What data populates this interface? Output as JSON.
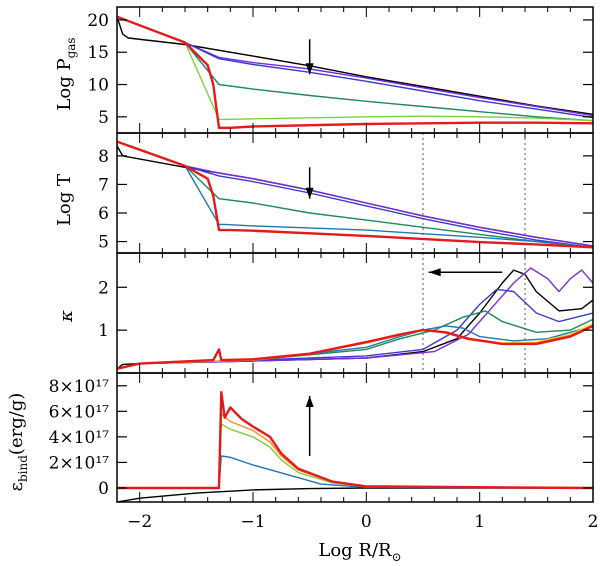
{
  "chart_data": {
    "type": "line",
    "x": {
      "label_main": "Log R/R",
      "label_sub": "⊙",
      "lim": [
        -2.2,
        2.0
      ],
      "major_ticks": [
        -2,
        -1,
        0,
        1,
        2
      ],
      "tick_labels": [
        "−2",
        "−1",
        "0",
        "1",
        "2"
      ]
    },
    "color_sequence": [
      "#000000",
      "#7a2be0",
      "#3a3acf",
      "#1f8a5a",
      "#1f78b4",
      "#7fcf3a",
      "#e8e030",
      "#ff8c1a",
      "#e41a1c"
    ],
    "markers": {
      "vertical_dotted_lines": [
        0.5,
        1.4
      ],
      "panel_span": [
        1,
        2
      ]
    },
    "panels": [
      {
        "id": "pgas",
        "ylabel_main": "Log P",
        "ylabel_sub": "gas",
        "ylim": [
          2.5,
          22.0
        ],
        "ticks": [
          5,
          10,
          15,
          20
        ],
        "tick_labels": [
          "5",
          "10",
          "15",
          "20"
        ],
        "arrow": {
          "direction": "down",
          "x": -0.5,
          "y_from": 17.0,
          "y_to": 11.6
        },
        "series": [
          {
            "name": "black",
            "color": "#000000",
            "x": [
              -2.2,
              -2.15,
              -2.1,
              -1.6,
              -1.0,
              -0.5,
              0.0,
              0.5,
              1.0,
              1.5,
              2.0
            ],
            "y": [
              20.5,
              17.8,
              17.2,
              16.2,
              14.4,
              12.9,
              11.2,
              9.7,
              8.2,
              6.7,
              5.4
            ]
          },
          {
            "name": "violet",
            "color": "#7a2be0",
            "x": [
              -2.2,
              -1.6,
              -1.3,
              -1.0,
              -0.5,
              0.0,
              0.5,
              1.0,
              1.5,
              2.0
            ],
            "y": [
              20.5,
              16.5,
              14.2,
              13.4,
              12.4,
              11.0,
              9.5,
              8.0,
              6.6,
              5.2
            ]
          },
          {
            "name": "blue",
            "color": "#3a3acf",
            "x": [
              -2.2,
              -1.6,
              -1.3,
              -1.0,
              -0.5,
              0.0,
              0.5,
              1.0,
              1.5,
              2.0
            ],
            "y": [
              20.5,
              16.5,
              14.0,
              13.1,
              11.9,
              10.5,
              9.0,
              7.5,
              6.2,
              4.9
            ]
          },
          {
            "name": "green",
            "color": "#1f8a5a",
            "x": [
              -2.2,
              -1.6,
              -1.3,
              -1.0,
              -0.5,
              0.0,
              0.5,
              1.0,
              1.5,
              2.0
            ],
            "y": [
              20.5,
              16.5,
              10.0,
              9.3,
              8.3,
              7.4,
              6.6,
              5.8,
              5.0,
              4.4
            ]
          },
          {
            "name": "lime",
            "color": "#7fcf3a",
            "x": [
              -2.2,
              -1.6,
              -1.3,
              -1.25,
              -1.0,
              0.0,
              0.5,
              1.0,
              1.5,
              2.0
            ],
            "y": [
              20.5,
              16.5,
              4.6,
              4.6,
              4.7,
              5.0,
              5.1,
              5.0,
              4.8,
              4.4
            ]
          },
          {
            "name": "red",
            "color": "#e41a1c",
            "x": [
              -2.2,
              -1.6,
              -1.4,
              -1.35,
              -1.32,
              -1.3,
              -1.2,
              -1.0,
              0.0,
              1.0,
              1.5,
              2.0
            ],
            "y": [
              20.5,
              16.5,
              13.0,
              10.0,
              6.0,
              3.3,
              3.3,
              3.5,
              3.9,
              4.1,
              4.1,
              4.0
            ]
          }
        ]
      },
      {
        "id": "logt",
        "ylabel_main": "Log T",
        "ylabel_sub": "",
        "ylim": [
          4.6,
          8.8
        ],
        "ticks": [
          5,
          6,
          7,
          8
        ],
        "tick_labels": [
          "5",
          "6",
          "7",
          "8"
        ],
        "arrow": {
          "direction": "down",
          "x": -0.5,
          "y_from": 7.6,
          "y_to": 6.5
        },
        "series": [
          {
            "name": "black",
            "color": "#000000",
            "x": [
              -2.2,
              -2.15,
              -1.6,
              -1.0,
              -0.5,
              0.0,
              0.5,
              1.0,
              1.5,
              2.0
            ],
            "y": [
              8.35,
              8.0,
              7.6,
              7.2,
              6.8,
              6.35,
              5.9,
              5.5,
              5.15,
              4.85
            ]
          },
          {
            "name": "violet",
            "color": "#7a2be0",
            "x": [
              -2.2,
              -1.6,
              -1.3,
              -1.0,
              -0.5,
              0.0,
              0.5,
              1.0,
              1.5,
              2.0
            ],
            "y": [
              8.5,
              7.65,
              7.4,
              7.2,
              6.8,
              6.35,
              5.9,
              5.5,
              5.15,
              4.85
            ]
          },
          {
            "name": "blue",
            "color": "#3a3acf",
            "x": [
              -2.2,
              -1.6,
              -1.3,
              -1.0,
              -0.5,
              0.0,
              0.5,
              1.0,
              1.5,
              2.0
            ],
            "y": [
              8.5,
              7.65,
              7.3,
              7.1,
              6.7,
              6.25,
              5.8,
              5.4,
              5.05,
              4.8
            ]
          },
          {
            "name": "green",
            "color": "#1f8a5a",
            "x": [
              -2.2,
              -1.6,
              -1.3,
              -1.0,
              -0.5,
              0.0,
              0.5,
              1.0,
              1.5,
              2.0
            ],
            "y": [
              8.5,
              7.65,
              6.5,
              6.35,
              6.0,
              5.75,
              5.5,
              5.25,
              5.0,
              4.8
            ]
          },
          {
            "name": "teal",
            "color": "#1f78b4",
            "x": [
              -2.2,
              -1.6,
              -1.3,
              -1.25,
              -1.0,
              0.0,
              1.0,
              1.5,
              2.0
            ],
            "y": [
              8.5,
              7.65,
              5.6,
              5.6,
              5.55,
              5.4,
              5.15,
              5.0,
              4.8
            ]
          },
          {
            "name": "red",
            "color": "#e41a1c",
            "x": [
              -2.2,
              -1.6,
              -1.4,
              -1.35,
              -1.3,
              -1.2,
              -1.0,
              0.0,
              1.0,
              1.5,
              2.0
            ],
            "y": [
              8.5,
              7.65,
              7.2,
              6.6,
              5.4,
              5.4,
              5.38,
              5.2,
              4.98,
              4.9,
              4.8
            ]
          }
        ]
      },
      {
        "id": "kappa",
        "ylabel_main": "κ",
        "ylabel_sub": "",
        "ylim": [
          0.0,
          2.8
        ],
        "ticks": [
          1,
          2
        ],
        "tick_labels": [
          "1",
          "2"
        ],
        "arrow": {
          "direction": "left",
          "y": 2.35,
          "x_from": 1.2,
          "x_to": 0.55
        },
        "series": [
          {
            "name": "black",
            "color": "#000000",
            "x": [
              -2.2,
              -2.15,
              -2.0,
              -1.0,
              0.0,
              0.5,
              0.8,
              1.0,
              1.2,
              1.3,
              1.4,
              1.5,
              1.7,
              1.9,
              2.0
            ],
            "y": [
              0.1,
              0.2,
              0.22,
              0.28,
              0.35,
              0.5,
              0.8,
              1.4,
              2.1,
              2.4,
              2.3,
              1.9,
              1.45,
              1.5,
              1.7
            ]
          },
          {
            "name": "violet",
            "color": "#7a2be0",
            "x": [
              -2.2,
              -2.0,
              -1.0,
              0.0,
              0.6,
              0.9,
              1.1,
              1.3,
              1.45,
              1.6,
              1.7,
              1.8,
              1.9,
              2.0
            ],
            "y": [
              0.1,
              0.22,
              0.28,
              0.35,
              0.5,
              0.9,
              1.5,
              2.1,
              2.45,
              2.2,
              1.9,
              2.2,
              2.4,
              2.1
            ]
          },
          {
            "name": "blue",
            "color": "#3a3acf",
            "x": [
              -2.2,
              -2.0,
              -1.0,
              0.0,
              0.5,
              0.8,
              1.0,
              1.15,
              1.3,
              1.5,
              1.7,
              2.0
            ],
            "y": [
              0.1,
              0.22,
              0.3,
              0.4,
              0.55,
              1.0,
              1.6,
              1.95,
              1.9,
              1.4,
              1.2,
              1.4
            ]
          },
          {
            "name": "green",
            "color": "#1f8a5a",
            "x": [
              -2.2,
              -2.0,
              -1.0,
              0.0,
              0.3,
              0.6,
              0.85,
              1.05,
              1.2,
              1.5,
              1.8,
              2.0
            ],
            "y": [
              0.1,
              0.22,
              0.3,
              0.55,
              0.8,
              1.0,
              1.3,
              1.45,
              1.2,
              0.95,
              1.0,
              1.25
            ]
          },
          {
            "name": "teal",
            "color": "#1f78b4",
            "x": [
              -2.2,
              -2.0,
              -1.0,
              0.0,
              0.3,
              0.5,
              0.7,
              0.85,
              1.0,
              1.3,
              1.6,
              2.0
            ],
            "y": [
              0.1,
              0.22,
              0.3,
              0.6,
              0.85,
              1.0,
              1.1,
              1.05,
              0.85,
              0.75,
              0.8,
              1.1
            ]
          },
          {
            "name": "yellow",
            "color": "#e8e030",
            "x": [
              -2.2,
              -2.0,
              -1.0,
              -0.5,
              0.0,
              0.3,
              0.5,
              0.7,
              0.9,
              1.2,
              1.5,
              1.8,
              2.0
            ],
            "y": [
              0.1,
              0.22,
              0.3,
              0.45,
              0.72,
              0.9,
              1.0,
              0.95,
              0.8,
              0.7,
              0.72,
              0.9,
              1.15
            ]
          },
          {
            "name": "orange",
            "color": "#ff8c1a",
            "x": [
              -2.2,
              -2.0,
              -1.0,
              -0.5,
              0.0,
              0.3,
              0.5,
              0.7,
              0.9,
              1.2,
              1.5,
              1.8,
              2.0
            ],
            "y": [
              0.1,
              0.22,
              0.3,
              0.44,
              0.7,
              0.88,
              1.0,
              0.93,
              0.78,
              0.68,
              0.7,
              0.88,
              1.12
            ]
          },
          {
            "name": "red",
            "color": "#e41a1c",
            "x": [
              -2.2,
              -2.0,
              -1.35,
              -1.3,
              -1.28,
              -1.0,
              -0.5,
              0.0,
              0.3,
              0.5,
              0.7,
              0.9,
              1.2,
              1.5,
              1.8,
              2.0
            ],
            "y": [
              0.1,
              0.22,
              0.3,
              0.55,
              0.3,
              0.32,
              0.45,
              0.72,
              0.9,
              1.0,
              0.95,
              0.8,
              0.68,
              0.68,
              0.85,
              1.1
            ]
          }
        ]
      },
      {
        "id": "ebind",
        "ylabel_main": "ε",
        "ylabel_sub": "bind",
        "ylabel_suffix": "(erg/g)",
        "ylim": [
          -1.1e+17,
          9e+17
        ],
        "ticks": [
          0,
          2e+17,
          4e+17,
          6e+17,
          8e+17
        ],
        "tick_labels": [
          "0",
          "2×10¹⁷",
          "4×10¹⁷",
          "6×10¹⁷",
          "8×10¹⁷"
        ],
        "arrow": {
          "direction": "up",
          "x": -0.5,
          "y_from": 2.5e+17,
          "y_to": 7.2e+17
        },
        "series": [
          {
            "name": "black",
            "color": "#000000",
            "x": [
              -2.2,
              -2.0,
              -1.5,
              -1.0,
              -0.5,
              0.0,
              2.0
            ],
            "y": [
              -1.1e+17,
              -8e+16,
              -4e+16,
              -1.5e+16,
              -5000000000000000.0,
              0.0,
              0.0
            ]
          },
          {
            "name": "teal",
            "color": "#1f78b4",
            "x": [
              -2.2,
              -1.3,
              -1.28,
              -1.2,
              -1.0,
              -0.8,
              -0.6,
              -0.4,
              0.0,
              2.0
            ],
            "y": [
              0.0,
              0.0,
              2.5e+17,
              2.4e+17,
              1.8e+17,
              1.3e+17,
              8e+16,
              3e+16,
              5000000000000000.0,
              0.0
            ]
          },
          {
            "name": "lime",
            "color": "#7fcf3a",
            "x": [
              -2.2,
              -1.3,
              -1.28,
              -1.2,
              -1.0,
              -0.85,
              -0.75,
              -0.6,
              -0.3,
              0.0,
              2.0
            ],
            "y": [
              0.0,
              0.0,
              5e+17,
              4.6e+17,
              4e+17,
              3.2e+17,
              2.2e+17,
              1.2e+17,
              4e+16,
              1e+16,
              0.0
            ]
          },
          {
            "name": "orange",
            "color": "#ff8c1a",
            "x": [
              -2.2,
              -1.3,
              -1.28,
              -1.2,
              -1.0,
              -0.85,
              -0.75,
              -0.6,
              -0.3,
              0.0,
              2.0
            ],
            "y": [
              0.0,
              0.0,
              5.8e+17,
              5.2e+17,
              4.5e+17,
              3.6e+17,
              2.5e+17,
              1.4e+17,
              5e+16,
              1e+16,
              0.0
            ]
          },
          {
            "name": "red",
            "color": "#e41a1c",
            "x": [
              -2.2,
              -1.3,
              -1.28,
              -1.25,
              -1.2,
              -1.1,
              -1.0,
              -0.85,
              -0.75,
              -0.6,
              -0.3,
              0.0,
              2.0
            ],
            "y": [
              0.0,
              0.0,
              7.5e+17,
              5.5e+17,
              6.3e+17,
              5.4e+17,
              4.8e+17,
              4e+17,
              2.7e+17,
              1.5e+17,
              5e+16,
              1.2e+16,
              0.0
            ]
          }
        ]
      }
    ]
  }
}
